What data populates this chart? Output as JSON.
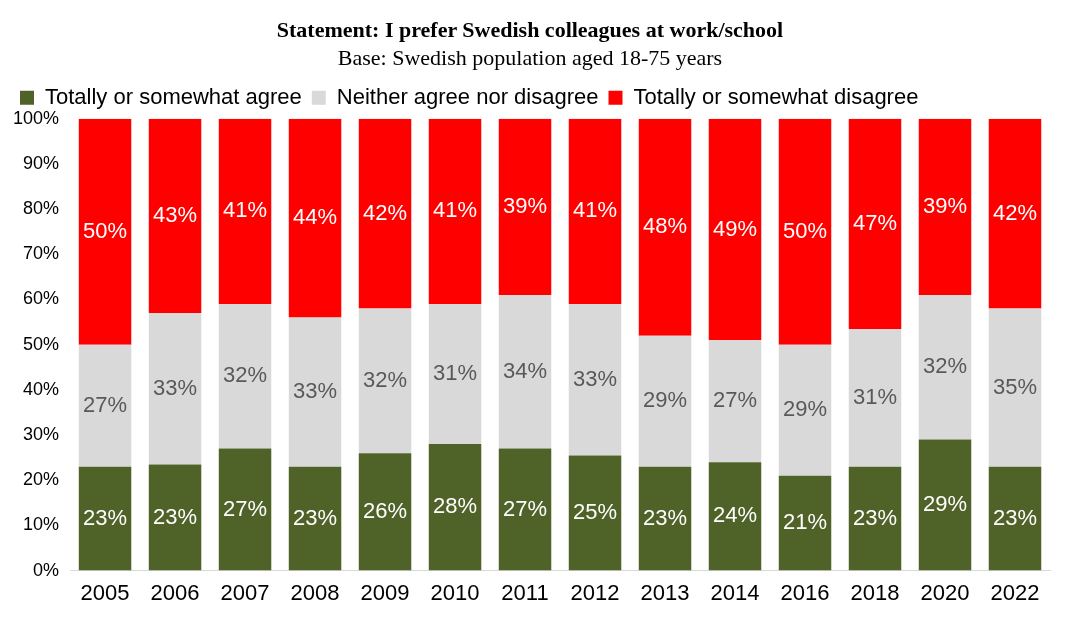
{
  "chart_data": {
    "type": "bar",
    "title": "Statement: I prefer Swedish colleagues at work/school",
    "subtitle": "Base: Swedish population aged 18-75 years",
    "categories": [
      "2005",
      "2006",
      "2007",
      "2008",
      "2009",
      "2010",
      "2011",
      "2012",
      "2013",
      "2014",
      "2016",
      "2018",
      "2020",
      "2022"
    ],
    "stacked": true,
    "legend": "top",
    "grid": false,
    "ylim": [
      0,
      100
    ],
    "yticks": [
      {
        "value": 0,
        "label": "0%"
      },
      {
        "value": 10,
        "label": "10%"
      },
      {
        "value": 20,
        "label": "20%"
      },
      {
        "value": 30,
        "label": "30%"
      },
      {
        "value": 40,
        "label": "40%"
      },
      {
        "value": 50,
        "label": "50%"
      },
      {
        "value": 60,
        "label": "60%"
      },
      {
        "value": 70,
        "label": "70%"
      },
      {
        "value": 80,
        "label": "80%"
      },
      {
        "value": 90,
        "label": "90%"
      },
      {
        "value": 100,
        "label": "100%"
      }
    ],
    "series": [
      {
        "name": "Totally or somewhat agree",
        "color": "#4f6228",
        "values": [
          23,
          23.5,
          27,
          23,
          26,
          28,
          27,
          25.5,
          23,
          24,
          21,
          23,
          29,
          23
        ],
        "value_labels": [
          "23%",
          "23%",
          "27%",
          "23%",
          "26%",
          "28%",
          "27%",
          "25%",
          "23%",
          "24%",
          "21%",
          "23%",
          "29%",
          "23%"
        ]
      },
      {
        "name": "Neither agree nor disagree",
        "color": "#d9d9d9",
        "values": [
          27,
          33.5,
          32,
          33,
          32,
          31,
          34,
          33.5,
          29,
          27,
          29,
          30.5,
          32,
          35
        ],
        "value_labels": [
          "27%",
          "33%",
          "32%",
          "33%",
          "32%",
          "31%",
          "34%",
          "33%",
          "29%",
          "27%",
          "29%",
          "31%",
          "32%",
          "35%"
        ]
      },
      {
        "name": "Totally or somewhat disagree",
        "color": "#ff0000",
        "values": [
          50,
          43,
          41,
          44,
          42,
          41,
          39,
          41,
          48,
          49,
          50,
          46.5,
          39,
          42
        ],
        "value_labels": [
          "50%",
          "43%",
          "41%",
          "44%",
          "42%",
          "41%",
          "39%",
          "41%",
          "48%",
          "49%",
          "50%",
          "47%",
          "39%",
          "42%"
        ]
      }
    ]
  }
}
